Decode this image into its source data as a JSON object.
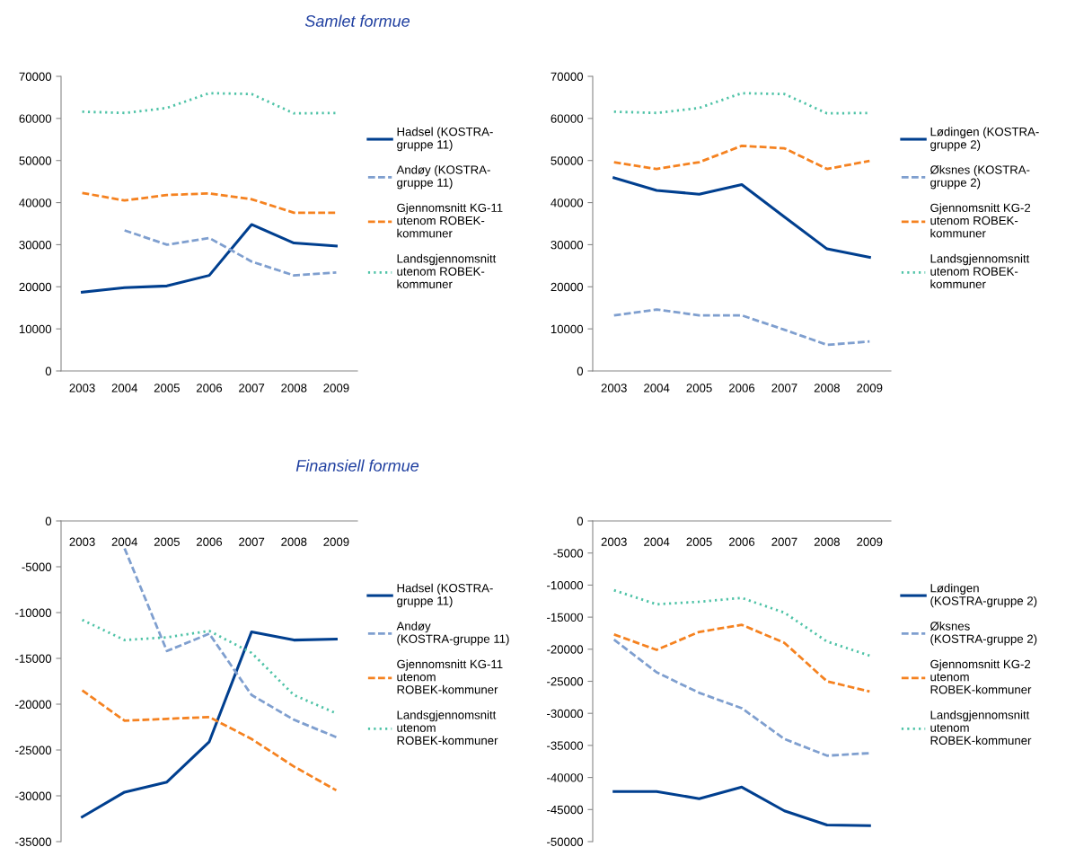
{
  "chart_data": [
    {
      "type": "line",
      "title": "Samlet formue",
      "categories": [
        "2003",
        "2004",
        "2005",
        "2006",
        "2007",
        "2008",
        "2009"
      ],
      "ylim": [
        0,
        70000
      ],
      "yticks": [
        0,
        10000,
        20000,
        30000,
        40000,
        50000,
        60000,
        70000
      ],
      "legend": "right",
      "grid": false,
      "series": [
        {
          "name": "Hadsel (KOSTRA-\ngruppe 11)",
          "color": "#003f8f",
          "line_style": "solid",
          "values": [
            18700,
            19800,
            20200,
            22700,
            34800,
            30400,
            29700
          ]
        },
        {
          "name": "Andøy (KOSTRA-\ngruppe 11)",
          "color": "#7f9fcf",
          "line_style": "dashed",
          "values": [
            null,
            33400,
            30000,
            31600,
            26000,
            22700,
            23400
          ]
        },
        {
          "name": "Gjennomsnitt KG-11\nutenom ROBEK-\nkommuner",
          "color": "#f58220",
          "line_style": "dashed",
          "values": [
            42300,
            40500,
            41800,
            42200,
            40800,
            37600,
            37600
          ]
        },
        {
          "name": "Landsgjennomsnitt\nutenom ROBEK-\nkommuner",
          "color": "#4fc3a7",
          "line_style": "dotted",
          "values": [
            61600,
            61300,
            62500,
            66000,
            65800,
            61200,
            61300
          ]
        }
      ]
    },
    {
      "type": "line",
      "categories": [
        "2003",
        "2004",
        "2005",
        "2006",
        "2007",
        "2008",
        "2009"
      ],
      "ylim": [
        0,
        70000
      ],
      "yticks": [
        0,
        10000,
        20000,
        30000,
        40000,
        50000,
        60000,
        70000
      ],
      "legend": "right",
      "grid": false,
      "series": [
        {
          "name": "Lødingen (KOSTRA-\ngruppe 2)",
          "color": "#003f8f",
          "line_style": "solid",
          "values": [
            45900,
            42900,
            42000,
            44300,
            36600,
            29000,
            27000
          ]
        },
        {
          "name": "Øksnes (KOSTRA-\ngruppe 2)",
          "color": "#7f9fcf",
          "line_style": "dashed",
          "values": [
            13200,
            14600,
            13200,
            13200,
            9800,
            6200,
            7000
          ]
        },
        {
          "name": "Gjennomsnitt KG-2\nutenom ROBEK-\nkommuner",
          "color": "#f58220",
          "line_style": "dashed",
          "values": [
            49600,
            48000,
            49600,
            53500,
            52900,
            48000,
            49900
          ]
        },
        {
          "name": "Landsgjennomsnitt\nutenom ROBEK-\nkommuner",
          "color": "#4fc3a7",
          "line_style": "dotted",
          "values": [
            61600,
            61300,
            62500,
            66000,
            65800,
            61200,
            61300
          ]
        }
      ]
    },
    {
      "type": "line",
      "title": "Finansiell formue",
      "categories": [
        "2003",
        "2004",
        "2005",
        "2006",
        "2007",
        "2008",
        "2009"
      ],
      "ylim": [
        -35000,
        0
      ],
      "yticks": [
        -35000,
        -30000,
        -25000,
        -20000,
        -15000,
        -10000,
        -5000,
        0
      ],
      "legend": "right",
      "grid": false,
      "series": [
        {
          "name": "Hadsel (KOSTRA-\ngruppe 11)",
          "color": "#003f8f",
          "line_style": "solid",
          "values": [
            -32300,
            -29600,
            -28500,
            -24100,
            -12100,
            -13000,
            -12900
          ]
        },
        {
          "name": "Andøy\n(KOSTRA-gruppe 11)",
          "color": "#7f9fcf",
          "line_style": "dashed",
          "values": [
            null,
            -3000,
            -14200,
            -12300,
            -19000,
            -21700,
            -23600
          ]
        },
        {
          "name": "Gjennomsnitt KG-11\nutenom\nROBEK-kommuner",
          "color": "#f58220",
          "line_style": "dashed",
          "values": [
            -18500,
            -21800,
            -21600,
            -21400,
            -23800,
            -26800,
            -29400
          ]
        },
        {
          "name": "Landsgjennomsnitt\nutenom\nROBEK-kommuner",
          "color": "#4fc3a7",
          "line_style": "dotted",
          "values": [
            -10800,
            -13000,
            -12700,
            -12000,
            -14400,
            -19000,
            -21000
          ]
        }
      ]
    },
    {
      "type": "line",
      "categories": [
        "2003",
        "2004",
        "2005",
        "2006",
        "2007",
        "2008",
        "2009"
      ],
      "ylim": [
        -50000,
        0
      ],
      "yticks": [
        -50000,
        -45000,
        -40000,
        -35000,
        -30000,
        -25000,
        -20000,
        -15000,
        -10000,
        -5000,
        0
      ],
      "legend": "right",
      "grid": false,
      "series": [
        {
          "name": "Lødingen\n(KOSTRA-gruppe 2)",
          "color": "#003f8f",
          "line_style": "solid",
          "values": [
            -42200,
            -42200,
            -43300,
            -41500,
            -45200,
            -47400,
            -47500
          ]
        },
        {
          "name": "Øksnes\n(KOSTRA-gruppe 2)",
          "color": "#7f9fcf",
          "line_style": "dashed",
          "values": [
            -18500,
            -23600,
            -26800,
            -29200,
            -34000,
            -36600,
            -36200
          ]
        },
        {
          "name": "Gjennomsnitt KG-2\nutenom\nROBEK-kommuner",
          "color": "#f58220",
          "line_style": "dashed",
          "values": [
            -17700,
            -20100,
            -17300,
            -16200,
            -19000,
            -25000,
            -26600
          ]
        },
        {
          "name": "Landsgjennomsnitt\nutenom\nROBEK-kommuner",
          "color": "#4fc3a7",
          "line_style": "dotted",
          "values": [
            -10800,
            -13000,
            -12600,
            -12000,
            -14300,
            -18800,
            -21000
          ]
        }
      ]
    }
  ]
}
